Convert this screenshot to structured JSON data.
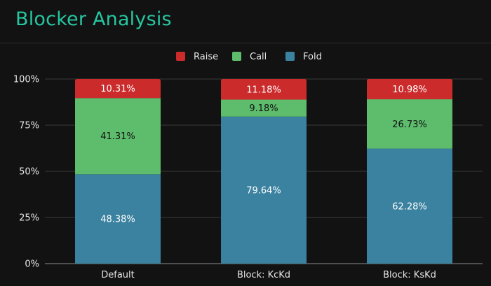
{
  "header": {
    "title": "Blocker Analysis"
  },
  "colors": {
    "Raise": "#cc2b2b",
    "Call": "#5dbd6c",
    "Fold": "#3b82a0",
    "title": "#26c6a0",
    "grid": "#3a3a3a",
    "background": "#121212"
  },
  "chart_data": {
    "type": "bar",
    "stacked": true,
    "categories": [
      "Default",
      "Block: KcKd",
      "Block: KsKd"
    ],
    "series": [
      {
        "name": "Fold",
        "values": [
          48.38,
          79.64,
          62.28
        ],
        "labels": [
          "48.38%",
          "79.64%",
          "62.28%"
        ]
      },
      {
        "name": "Call",
        "values": [
          41.31,
          9.18,
          26.73
        ],
        "labels": [
          "41.31%",
          "9.18%",
          "26.73%"
        ]
      },
      {
        "name": "Raise",
        "values": [
          10.31,
          11.18,
          10.98
        ],
        "labels": [
          "10.31%",
          "11.18%",
          "10.98%"
        ]
      }
    ],
    "legend_order": [
      "Raise",
      "Call",
      "Fold"
    ],
    "legend_position": "top-center",
    "yticks": [
      "0%",
      "25%",
      "50%",
      "75%",
      "100%"
    ],
    "ylim": [
      0,
      100
    ],
    "grid": true
  }
}
